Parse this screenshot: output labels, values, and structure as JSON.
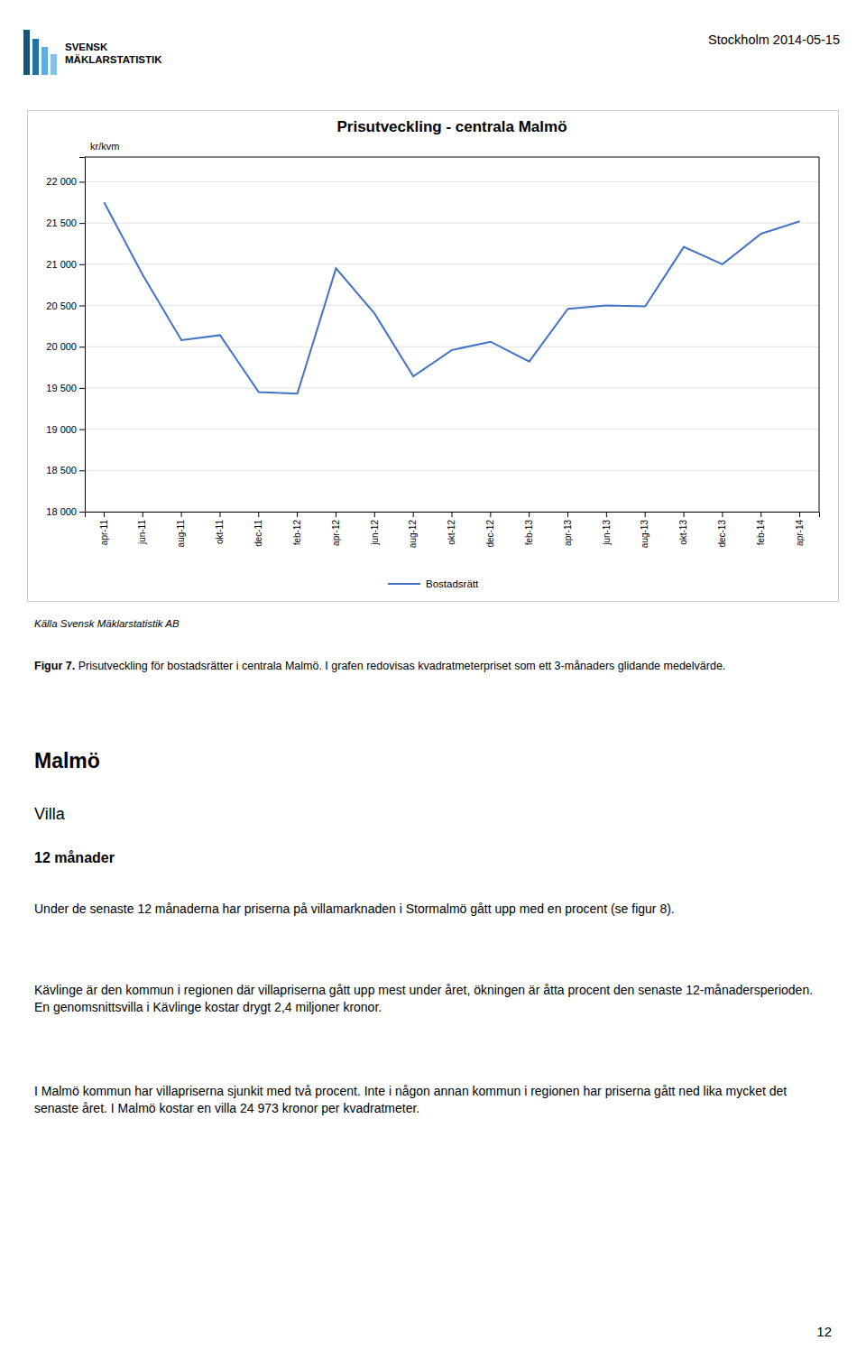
{
  "chart_data": {
    "type": "line",
    "title": "Prisutveckling - centrala Malmö",
    "y_label": "kr/kvm",
    "categories": [
      "apr-11",
      "jun-11",
      "aug-11",
      "okt-11",
      "dec-11",
      "feb-12",
      "apr-12",
      "jun-12",
      "aug-12",
      "okt-12",
      "dec-12",
      "feb-13",
      "apr-13",
      "jun-13",
      "aug-13",
      "okt-13",
      "dec-13",
      "feb-14",
      "apr-14"
    ],
    "series": [
      {
        "name": "Bostadsrätt",
        "color": "#4472C4",
        "values": [
          21750,
          20870,
          20080,
          20140,
          19450,
          19430,
          20950,
          20400,
          19640,
          19960,
          20060,
          19820,
          20460,
          20500,
          20490,
          21210,
          21000,
          21370,
          21520
        ]
      }
    ],
    "ylim": [
      18000,
      22300
    ],
    "yticks": [
      {
        "value": 18000,
        "label": "18 000"
      },
      {
        "value": 18500,
        "label": "18 500"
      },
      {
        "value": 19000,
        "label": "19 000"
      },
      {
        "value": 19500,
        "label": "19 500"
      },
      {
        "value": 20000,
        "label": "20 000"
      },
      {
        "value": 20500,
        "label": "20 500"
      },
      {
        "value": 21000,
        "label": "21 000"
      },
      {
        "value": 21500,
        "label": "21 500"
      },
      {
        "value": 22000,
        "label": "22 000"
      }
    ],
    "grid": true,
    "legend": "bottom"
  },
  "page": {
    "logo_text": [
      "SVENSK",
      "MÄKLARSTATISTIK"
    ],
    "logo_colors": [
      "#1a5276",
      "#2471a3",
      "#5dade2",
      "#85c1e9"
    ],
    "header_date": "Stockholm 2014-05-15",
    "source": "Källa Svensk Mäklarstatistik AB",
    "caption_bold": "Figur 7.",
    "caption_rest": " Prisutveckling för bostadsrätter i centrala Malmö. I grafen redovisas kvadratmeterpriset som ett 3-månaders glidande medelvärde.",
    "section": "Malmö",
    "subsection": "Villa",
    "period": "12 månader",
    "paragraphs": [
      "Under de senaste 12 månaderna har priserna på villamarknaden i Stormalmö gått upp med en procent (se figur 8).",
      "Kävlinge är den kommun i regionen där villapriserna gått upp mest under året, ökningen är åtta procent den senaste 12-månadersperioden. En genomsnittsvilla i Kävlinge kostar drygt 2,4 miljoner kronor.",
      "I Malmö kommun har villapriserna sjunkit med två procent. Inte i någon annan kommun i regionen har priserna gått ned lika mycket det senaste året. I Malmö kostar en villa 24 973 kronor per kvadratmeter."
    ],
    "page_number": "12"
  }
}
